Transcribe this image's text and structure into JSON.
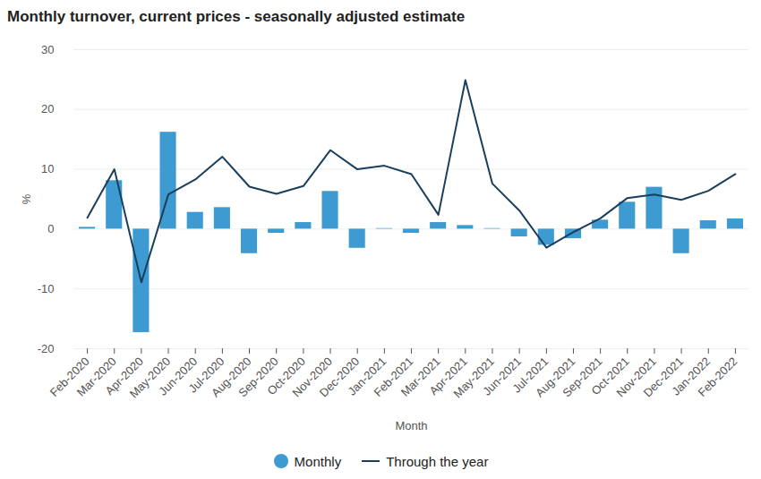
{
  "chart_data": {
    "type": "bar",
    "title": "Monthly turnover, current prices - seasonally adjusted estimate",
    "x_label": "Month",
    "y_label": "%",
    "categories": [
      "Feb-2020",
      "Mar-2020",
      "Apr-2020",
      "May-2020",
      "Jun-2020",
      "Jul-2020",
      "Aug-2020",
      "Sep-2020",
      "Oct-2020",
      "Nov-2020",
      "Dec-2020",
      "Jan-2021",
      "Feb-2021",
      "Mar-2021",
      "Apr-2021",
      "May-2021",
      "Jun-2021",
      "Jul-2021",
      "Aug-2021",
      "Sep-2021",
      "Oct-2021",
      "Nov-2021",
      "Dec-2021",
      "Jan-2022",
      "Feb-2022"
    ],
    "series": [
      {
        "name": "Monthly",
        "type": "bar",
        "color": "#3d9bd1",
        "values": [
          0.3,
          8.1,
          -17.3,
          16.2,
          2.8,
          3.6,
          -4.1,
          -0.7,
          1.1,
          6.3,
          -3.2,
          0.1,
          -0.7,
          1.1,
          0.6,
          0.1,
          -1.3,
          -2.7,
          -1.6,
          1.5,
          4.5,
          7.0,
          -4.1,
          1.4,
          1.7
        ]
      },
      {
        "name": "Through the year",
        "type": "line",
        "color": "#1a3f5c",
        "values": [
          1.9,
          10.0,
          -8.9,
          5.8,
          8.3,
          12.1,
          7.1,
          5.9,
          7.2,
          13.2,
          10.0,
          10.6,
          9.2,
          2.4,
          24.9,
          7.6,
          3.1,
          -3.1,
          -0.5,
          1.8,
          5.2,
          5.8,
          4.9,
          6.4,
          9.2
        ]
      }
    ],
    "ylim": [
      -20,
      30
    ],
    "yticks": [
      -20,
      -10,
      0,
      10,
      20,
      30
    ],
    "grid": true,
    "legend": "bottom"
  }
}
